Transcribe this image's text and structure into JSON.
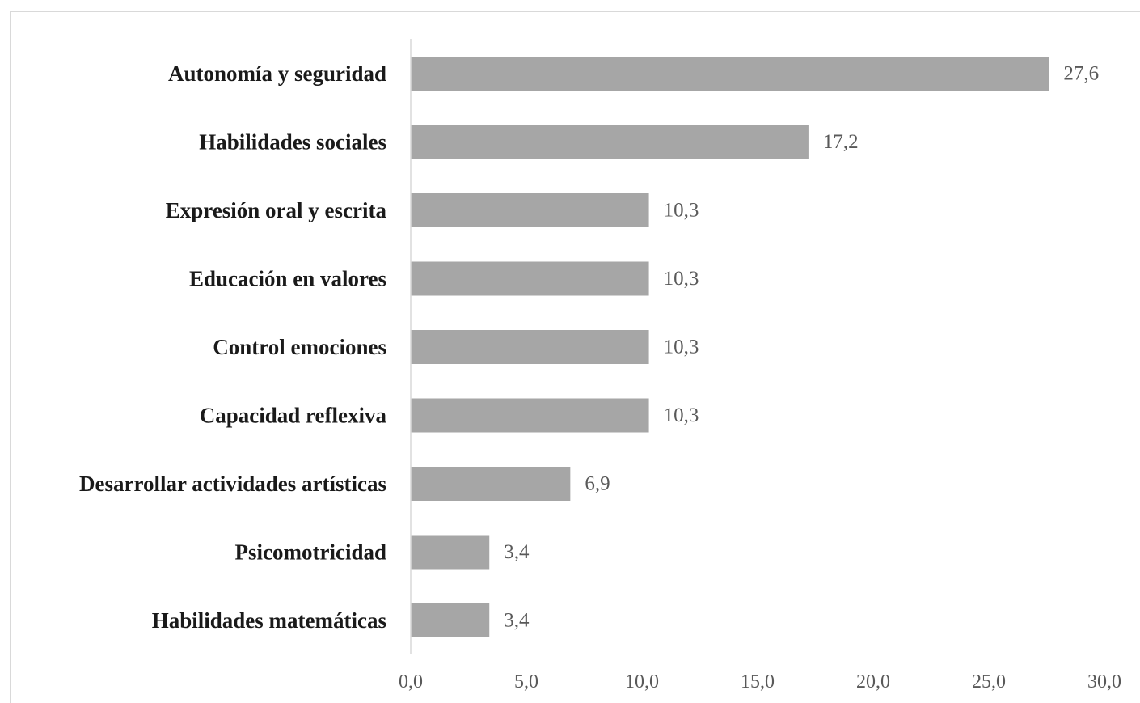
{
  "chart_data": {
    "type": "bar",
    "orientation": "horizontal",
    "title": "",
    "xlabel": "",
    "ylabel": "",
    "categories": [
      "Autonomía y seguridad",
      "Habilidades sociales",
      "Expresión oral y escrita",
      "Educación en valores",
      "Control emociones",
      "Capacidad reflexiva",
      "Desarrollar actividades artísticas",
      "Psicomotricidad",
      "Habilidades matemáticas"
    ],
    "values": [
      27.6,
      17.2,
      10.3,
      10.3,
      10.3,
      10.3,
      6.9,
      3.4,
      3.4
    ],
    "value_labels": [
      "27,6",
      "17,2",
      "10,3",
      "10,3",
      "10,3",
      "10,3",
      "6,9",
      "3,4",
      "3,4"
    ],
    "xlim": [
      0,
      30
    ],
    "xticks": [
      0,
      5,
      10,
      15,
      20,
      25,
      30
    ],
    "xtick_labels": [
      "0,0",
      "5,0",
      "10,0",
      "15,0",
      "20,0",
      "25,0",
      "30,0"
    ],
    "grid": false,
    "legend": "none",
    "bar_color": "#a6a6a6",
    "axis_color": "#d9d9d9"
  }
}
